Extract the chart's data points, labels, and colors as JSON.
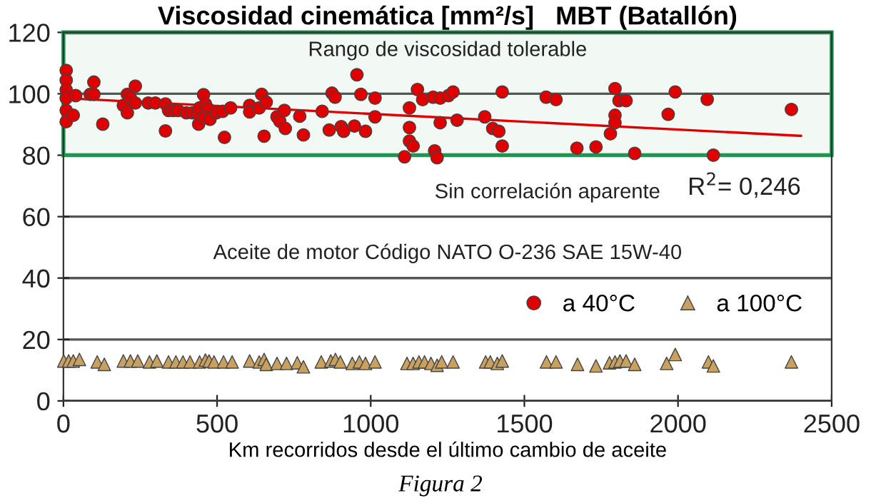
{
  "chart_data": {
    "type": "scatter",
    "title": "Viscosidad cinemática [mm²/s]   MBT (Batallón)",
    "xlabel": "Km recorridos desde el último cambio de aceite",
    "annotations": [
      "Sin correlación aparente",
      "R$^{2}$= 0,246",
      "Aceite de motor Código NATO O-236 SAE 15W-40",
      "Figura 2"
    ],
    "xlim": [
      0,
      2500
    ],
    "xticks": [
      0,
      500,
      1000,
      1500,
      2000,
      2500
    ],
    "ylim": [
      0,
      120
    ],
    "yticks": [
      0,
      20,
      40,
      60,
      80,
      100,
      120
    ],
    "grid": "y",
    "legend": "right",
    "bands": [
      {
        "axis": "y",
        "from": 80,
        "to": 120,
        "label": "Rango de viscosidad tolerable",
        "color": "#1a9a50"
      }
    ],
    "series": [
      {
        "name": "a 40°C",
        "color": "#e00000",
        "marker": "circle",
        "x": [
          9,
          9,
          9,
          9,
          9,
          9,
          32,
          40,
          87,
          99,
          99,
          128,
          195,
          208,
          208,
          218,
          234,
          234,
          276,
          299,
          332,
          332,
          342,
          358,
          373,
          400,
          420,
          436,
          443,
          456,
          462,
          471,
          440,
          459,
          477,
          498,
          518,
          524,
          544,
          606,
          606,
          637,
          645,
          660,
          653,
          695,
          704,
          719,
          722,
          769,
          781,
          842,
          865,
          874,
          884,
          904,
          912,
          947,
          955,
          968,
          983,
          1014,
          1014,
          1110,
          1126,
          1126,
          1126,
          1138,
          1152,
          1169,
          1203,
          1208,
          1216,
          1226,
          1226,
          1253,
          1268,
          1281,
          1371,
          1397,
          1417,
          1428,
          1428,
          1571,
          1603,
          1671,
          1733,
          1780,
          1795,
          1795,
          1795,
          1808,
          1831,
          1859,
          1968,
          1991,
          2095,
          2115,
          2369
        ],
        "values": [
          107.6,
          104.4,
          101.3,
          98.6,
          94.6,
          90.9,
          93.0,
          99.4,
          99.8,
          103.8,
          99.8,
          90.1,
          96.2,
          99.8,
          93.8,
          98.6,
          102.5,
          97.0,
          97.0,
          97.0,
          96.7,
          87.9,
          94.6,
          94.6,
          94.6,
          93.8,
          93.8,
          93.8,
          95.4,
          99.7,
          96.7,
          95.1,
          90.1,
          92.2,
          91.7,
          93.8,
          94.3,
          85.8,
          95.4,
          96.2,
          94.1,
          95.4,
          99.8,
          97.3,
          86.2,
          92.5,
          91.1,
          94.6,
          88.7,
          92.7,
          86.6,
          94.3,
          88.2,
          100.2,
          98.9,
          89.3,
          87.8,
          89.5,
          106.2,
          99.8,
          87.8,
          98.6,
          92.5,
          79.5,
          95.4,
          89.0,
          84.6,
          83.0,
          101.4,
          98.1,
          98.9,
          81.4,
          79.2,
          98.6,
          90.6,
          99.4,
          100.6,
          91.4,
          92.5,
          88.7,
          87.8,
          100.6,
          83.0,
          98.9,
          98.1,
          82.3,
          82.7,
          87.0,
          101.7,
          93.0,
          90.6,
          97.8,
          97.8,
          80.6,
          93.3,
          100.6,
          98.2,
          80.0,
          94.9
        ]
      },
      {
        "name": "a 100°C",
        "color": "#c8a060",
        "marker": "triangle",
        "x": [
          1,
          17,
          32,
          52,
          110,
          133,
          195,
          218,
          242,
          280,
          304,
          342,
          366,
          389,
          412,
          443,
          462,
          474,
          490,
          521,
          549,
          606,
          637,
          653,
          660,
          695,
          726,
          761,
          781,
          839,
          870,
          885,
          901,
          940,
          963,
          983,
          1014,
          1118,
          1138,
          1157,
          1175,
          1196,
          1216,
          1231,
          1268,
          1374,
          1389,
          1412,
          1428,
          1572,
          1603,
          1673,
          1733,
          1777,
          1795,
          1811,
          1831,
          1859,
          1963,
          1991,
          2099,
          2115,
          2369
        ],
        "values": [
          13.0,
          13.0,
          13.0,
          13.5,
          12.7,
          11.9,
          13.0,
          13.0,
          13.0,
          12.7,
          13.0,
          12.7,
          12.7,
          12.7,
          12.7,
          12.7,
          13.3,
          13.0,
          12.7,
          12.7,
          12.7,
          13.0,
          12.7,
          13.5,
          11.9,
          12.2,
          12.2,
          12.4,
          11.1,
          12.7,
          13.0,
          13.5,
          12.7,
          12.2,
          12.7,
          12.2,
          12.7,
          12.2,
          12.2,
          12.7,
          12.7,
          12.2,
          11.6,
          12.7,
          12.7,
          12.7,
          12.7,
          12.2,
          13.0,
          12.7,
          12.7,
          11.9,
          11.4,
          12.4,
          12.7,
          13.0,
          13.0,
          11.9,
          12.2,
          15.1,
          12.7,
          11.4,
          12.7
        ]
      },
      {
        "type": "line",
        "color": "#e00000",
        "x": [
          0,
          2400
        ],
        "values": [
          98.6,
          86.3
        ]
      }
    ]
  }
}
